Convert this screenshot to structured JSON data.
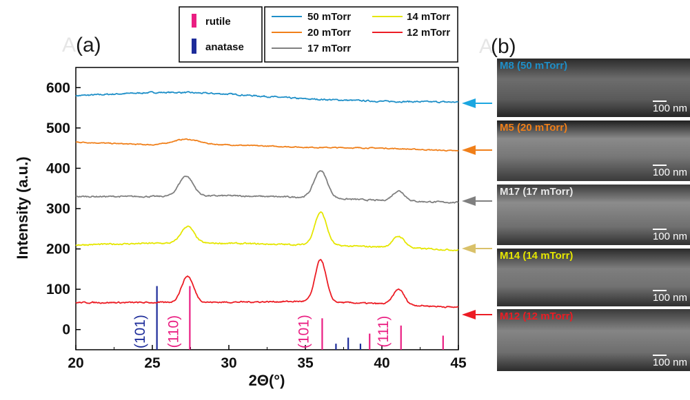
{
  "panel_a_label": "(a)",
  "panel_b_label": "(b)",
  "ghost_letter": "A",
  "colors": {
    "s50": "#1e8fc8",
    "s20": "#f07f19",
    "s17": "#7f7f7f",
    "s14": "#e5e600",
    "s12": "#ec1c24",
    "rutile": "#ea1e82",
    "anatase": "#1d2c9a",
    "arrow_50": "#1ba6e0",
    "arrow_20": "#f07f19",
    "arrow_17": "#7f7f7f",
    "arrow_14": "#d9c16a",
    "arrow_12": "#ec1c24"
  },
  "chart_data": {
    "type": "line",
    "xlabel": "2Θ(°)",
    "ylabel": "Intensity (a.u.)",
    "xlim": [
      20,
      45
    ],
    "ylim": [
      -50,
      650
    ],
    "xticks": [
      "20",
      "25",
      "30",
      "35",
      "40",
      "45"
    ],
    "yticks": [
      "0",
      "100",
      "200",
      "300",
      "400",
      "500",
      "600"
    ],
    "series": [
      {
        "key": "s50",
        "name": "50 mTorr",
        "baseline": [
          [
            20,
            580
          ],
          [
            25,
            588
          ],
          [
            27,
            588
          ],
          [
            30,
            584
          ],
          [
            35,
            572
          ],
          [
            40,
            566
          ],
          [
            45,
            564
          ]
        ],
        "peaks": [],
        "noise": 3
      },
      {
        "key": "s20",
        "name": "20 mTorr",
        "baseline": [
          [
            20,
            465
          ],
          [
            25,
            458
          ],
          [
            27,
            460
          ],
          [
            30,
            458
          ],
          [
            35,
            452
          ],
          [
            40,
            450
          ],
          [
            45,
            443
          ]
        ],
        "peaks": [
          [
            27.2,
            12,
            1.2
          ]
        ],
        "noise": 2
      },
      {
        "key": "s17",
        "name": "17 mTorr",
        "baseline": [
          [
            20,
            330
          ],
          [
            25,
            330
          ],
          [
            30,
            332
          ],
          [
            35,
            328
          ],
          [
            40,
            320
          ],
          [
            45,
            315
          ]
        ],
        "peaks": [
          [
            27.2,
            50,
            0.65
          ],
          [
            36.0,
            68,
            0.6
          ],
          [
            41.1,
            25,
            0.55
          ]
        ],
        "noise": 3
      },
      {
        "key": "s14",
        "name": "14 mTorr",
        "baseline": [
          [
            20,
            210
          ],
          [
            25,
            214
          ],
          [
            30,
            214
          ],
          [
            35,
            210
          ],
          [
            40,
            205
          ],
          [
            45,
            197
          ]
        ],
        "peaks": [
          [
            27.3,
            42,
            0.6
          ],
          [
            36.0,
            82,
            0.55
          ],
          [
            41.1,
            28,
            0.55
          ]
        ],
        "noise": 3
      },
      {
        "key": "s12",
        "name": "12 mTorr",
        "baseline": [
          [
            20,
            67
          ],
          [
            25,
            67
          ],
          [
            30,
            68
          ],
          [
            35,
            70
          ],
          [
            40,
            64
          ],
          [
            45,
            55
          ]
        ],
        "peaks": [
          [
            27.3,
            65,
            0.55
          ],
          [
            36.0,
            105,
            0.5
          ],
          [
            41.1,
            38,
            0.5
          ]
        ],
        "noise": 3
      }
    ],
    "reference_lines": {
      "rutile": [
        [
          27.45,
          108
        ],
        [
          36.1,
          28
        ],
        [
          39.2,
          -10
        ],
        [
          41.25,
          10
        ],
        [
          44.0,
          -15
        ]
      ],
      "anatase": [
        [
          25.3,
          108
        ],
        [
          37.0,
          -35
        ],
        [
          37.8,
          -20
        ],
        [
          38.6,
          -35
        ]
      ]
    },
    "peak_labels": [
      {
        "text": "(101)",
        "phase": "anatase",
        "x": 24.5
      },
      {
        "text": "(110)",
        "phase": "rutile",
        "x": 26.7
      },
      {
        "text": "(101)",
        "phase": "rutile",
        "x": 35.2
      },
      {
        "text": "(111)",
        "phase": "rutile",
        "x": 40.4
      }
    ],
    "legend_phase": [
      {
        "label": "rutile",
        "color_key": "rutile"
      },
      {
        "label": "anatase",
        "color_key": "anatase"
      }
    ],
    "legend_series": [
      {
        "label": "50 mTorr",
        "key": "s50"
      },
      {
        "label": "20 mTorr",
        "key": "s20"
      },
      {
        "label": "17 mTorr",
        "key": "s17"
      },
      {
        "label": "14 mTorr",
        "key": "s14"
      },
      {
        "label": "12 mTorr",
        "key": "s12"
      }
    ]
  },
  "sem_panels": [
    {
      "title": "M8 (50 mTorr)",
      "title_color": "#1e8fc8",
      "scale": "100 nm"
    },
    {
      "title": "M5 (20 mTorr)",
      "title_color": "#f07f19",
      "scale": "100 nm"
    },
    {
      "title": "M17 (17 mTorr)",
      "title_color": "#e8e8e8",
      "scale": "100 nm"
    },
    {
      "title": "M14 (14 mTorr)",
      "title_color": "#e5e600",
      "scale": "100 nm"
    },
    {
      "title": "M12 (12 mTorr)",
      "title_color": "#ec1c24",
      "scale": "100 nm"
    }
  ]
}
